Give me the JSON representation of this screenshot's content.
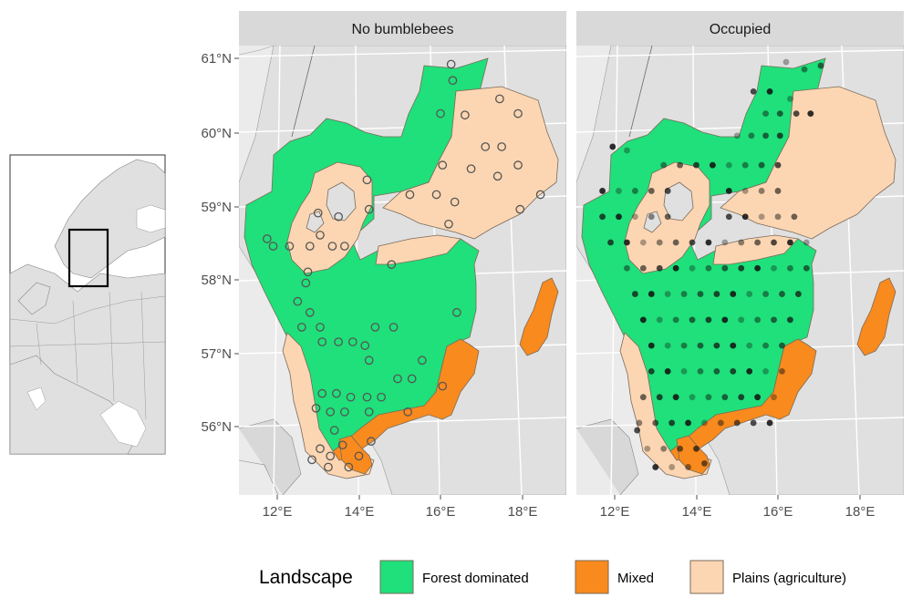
{
  "panels": [
    {
      "id": "no-bumblebees",
      "title": "No bumblebees"
    },
    {
      "id": "occupied",
      "title": "Occupied"
    }
  ],
  "axes": {
    "y_ticks": [
      "61°N",
      "60°N",
      "59°N",
      "58°N",
      "57°N",
      "56°N"
    ],
    "x_ticks": [
      "12°E",
      "14°E",
      "16°E",
      "18°E"
    ]
  },
  "legend": {
    "title": "Landscape",
    "items": [
      {
        "label": "Forest dominated",
        "color": "#1fe07a"
      },
      {
        "label": "Mixed",
        "color": "#f98a1d"
      },
      {
        "label": "Plains (agriculture)",
        "color": "#fcd6b2"
      }
    ]
  },
  "colors": {
    "panel_bg": "#ebebeb",
    "land": "#e0e0e0",
    "strip": "#d9d9d9",
    "forest": "#1fe07a",
    "mixed": "#f98a1d",
    "plains": "#fcd6b2",
    "outline": "#7a6a5a"
  },
  "sites": {
    "no_bumblebees": [
      [
        16.26,
        60.92
      ],
      [
        16.3,
        60.7
      ],
      [
        16.0,
        60.25
      ],
      [
        16.6,
        60.23
      ],
      [
        17.45,
        60.45
      ],
      [
        17.9,
        60.25
      ],
      [
        17.1,
        59.8
      ],
      [
        17.5,
        59.8
      ],
      [
        17.9,
        59.55
      ],
      [
        16.05,
        59.55
      ],
      [
        16.75,
        59.5
      ],
      [
        17.4,
        59.4
      ],
      [
        18.45,
        59.15
      ],
      [
        15.25,
        59.15
      ],
      [
        15.9,
        59.15
      ],
      [
        16.35,
        59.05
      ],
      [
        17.95,
        58.95
      ],
      [
        16.2,
        58.75
      ],
      [
        14.2,
        59.35
      ],
      [
        14.25,
        58.95
      ],
      [
        13.0,
        58.9
      ],
      [
        13.5,
        58.85
      ],
      [
        11.75,
        58.55
      ],
      [
        13.05,
        58.6
      ],
      [
        12.8,
        58.45
      ],
      [
        13.35,
        58.45
      ],
      [
        13.65,
        58.45
      ],
      [
        11.9,
        58.45
      ],
      [
        12.3,
        58.45
      ],
      [
        14.8,
        58.2
      ],
      [
        12.75,
        58.1
      ],
      [
        12.7,
        57.95
      ],
      [
        12.5,
        57.7
      ],
      [
        12.8,
        57.55
      ],
      [
        16.4,
        57.55
      ],
      [
        12.6,
        57.35
      ],
      [
        13.05,
        57.35
      ],
      [
        14.4,
        57.35
      ],
      [
        14.85,
        57.35
      ],
      [
        13.1,
        57.15
      ],
      [
        13.5,
        57.15
      ],
      [
        13.85,
        57.15
      ],
      [
        14.15,
        57.1
      ],
      [
        15.55,
        56.9
      ],
      [
        14.25,
        56.9
      ],
      [
        14.95,
        56.65
      ],
      [
        15.3,
        56.65
      ],
      [
        16.05,
        56.55
      ],
      [
        13.1,
        56.45
      ],
      [
        13.45,
        56.45
      ],
      [
        13.8,
        56.4
      ],
      [
        14.2,
        56.4
      ],
      [
        14.55,
        56.4
      ],
      [
        15.2,
        56.2
      ],
      [
        12.95,
        56.25
      ],
      [
        13.3,
        56.2
      ],
      [
        13.65,
        56.2
      ],
      [
        14.25,
        56.2
      ],
      [
        13.4,
        55.95
      ],
      [
        13.05,
        55.7
      ],
      [
        13.3,
        55.6
      ],
      [
        13.6,
        55.75
      ],
      [
        14.0,
        55.6
      ],
      [
        13.75,
        55.45
      ],
      [
        14.3,
        55.8
      ],
      [
        12.85,
        55.55
      ],
      [
        13.25,
        55.45
      ]
    ],
    "occupied": [
      [
        16.2,
        60.95
      ],
      [
        16.65,
        60.85
      ],
      [
        17.05,
        60.9
      ],
      [
        15.4,
        60.55
      ],
      [
        15.8,
        60.55
      ],
      [
        16.3,
        60.45
      ],
      [
        15.7,
        60.25
      ],
      [
        16.05,
        60.25
      ],
      [
        16.45,
        60.25
      ],
      [
        16.8,
        60.25
      ],
      [
        15.0,
        59.95
      ],
      [
        15.35,
        59.95
      ],
      [
        15.7,
        59.95
      ],
      [
        16.05,
        59.95
      ],
      [
        11.95,
        59.8
      ],
      [
        12.3,
        59.75
      ],
      [
        13.2,
        59.55
      ],
      [
        13.6,
        59.55
      ],
      [
        14.0,
        59.55
      ],
      [
        14.4,
        59.55
      ],
      [
        14.8,
        59.55
      ],
      [
        15.2,
        59.55
      ],
      [
        15.6,
        59.55
      ],
      [
        16.0,
        59.55
      ],
      [
        11.7,
        59.2
      ],
      [
        12.1,
        59.2
      ],
      [
        12.5,
        59.2
      ],
      [
        12.9,
        59.2
      ],
      [
        13.3,
        59.2
      ],
      [
        14.8,
        59.2
      ],
      [
        15.2,
        59.2
      ],
      [
        15.6,
        59.2
      ],
      [
        16.0,
        59.2
      ],
      [
        11.7,
        58.85
      ],
      [
        12.1,
        58.85
      ],
      [
        12.5,
        58.85
      ],
      [
        12.9,
        58.85
      ],
      [
        13.3,
        58.85
      ],
      [
        14.8,
        58.85
      ],
      [
        15.2,
        58.85
      ],
      [
        15.6,
        58.85
      ],
      [
        16.0,
        58.85
      ],
      [
        16.4,
        58.85
      ],
      [
        11.9,
        58.5
      ],
      [
        12.3,
        58.5
      ],
      [
        12.7,
        58.5
      ],
      [
        13.1,
        58.5
      ],
      [
        13.5,
        58.5
      ],
      [
        13.9,
        58.5
      ],
      [
        14.3,
        58.5
      ],
      [
        14.7,
        58.5
      ],
      [
        15.1,
        58.5
      ],
      [
        15.5,
        58.5
      ],
      [
        15.9,
        58.5
      ],
      [
        16.3,
        58.5
      ],
      [
        16.7,
        58.5
      ],
      [
        12.3,
        58.15
      ],
      [
        12.7,
        58.15
      ],
      [
        13.1,
        58.15
      ],
      [
        13.5,
        58.15
      ],
      [
        13.9,
        58.15
      ],
      [
        14.3,
        58.15
      ],
      [
        14.7,
        58.15
      ],
      [
        15.1,
        58.15
      ],
      [
        15.5,
        58.15
      ],
      [
        15.9,
        58.15
      ],
      [
        16.3,
        58.15
      ],
      [
        16.7,
        58.15
      ],
      [
        12.5,
        57.8
      ],
      [
        12.9,
        57.8
      ],
      [
        13.3,
        57.8
      ],
      [
        13.7,
        57.8
      ],
      [
        14.1,
        57.8
      ],
      [
        14.5,
        57.8
      ],
      [
        14.9,
        57.8
      ],
      [
        15.3,
        57.8
      ],
      [
        15.7,
        57.8
      ],
      [
        16.1,
        57.8
      ],
      [
        16.5,
        57.8
      ],
      [
        12.7,
        57.45
      ],
      [
        13.1,
        57.45
      ],
      [
        13.5,
        57.45
      ],
      [
        13.9,
        57.45
      ],
      [
        14.3,
        57.45
      ],
      [
        14.7,
        57.45
      ],
      [
        15.1,
        57.45
      ],
      [
        15.5,
        57.45
      ],
      [
        15.9,
        57.45
      ],
      [
        16.3,
        57.45
      ],
      [
        12.9,
        57.1
      ],
      [
        13.3,
        57.1
      ],
      [
        13.7,
        57.1
      ],
      [
        14.1,
        57.1
      ],
      [
        14.5,
        57.1
      ],
      [
        14.9,
        57.1
      ],
      [
        15.3,
        57.1
      ],
      [
        15.7,
        57.1
      ],
      [
        16.1,
        57.1
      ],
      [
        12.9,
        56.75
      ],
      [
        13.3,
        56.75
      ],
      [
        13.7,
        56.75
      ],
      [
        14.1,
        56.75
      ],
      [
        14.5,
        56.75
      ],
      [
        14.9,
        56.75
      ],
      [
        15.3,
        56.75
      ],
      [
        15.7,
        56.75
      ],
      [
        16.1,
        56.75
      ],
      [
        12.7,
        56.4
      ],
      [
        13.1,
        56.4
      ],
      [
        13.5,
        56.4
      ],
      [
        13.9,
        56.4
      ],
      [
        14.3,
        56.4
      ],
      [
        14.7,
        56.4
      ],
      [
        15.1,
        56.4
      ],
      [
        15.5,
        56.4
      ],
      [
        15.9,
        56.4
      ],
      [
        12.6,
        56.05
      ],
      [
        13.0,
        56.05
      ],
      [
        13.4,
        56.05
      ],
      [
        13.8,
        56.05
      ],
      [
        14.2,
        56.05
      ],
      [
        14.6,
        56.05
      ],
      [
        15.0,
        56.05
      ],
      [
        15.4,
        56.05
      ],
      [
        15.8,
        56.05
      ],
      [
        12.8,
        55.7
      ],
      [
        13.2,
        55.7
      ],
      [
        13.6,
        55.7
      ],
      [
        14.0,
        55.7
      ],
      [
        13.0,
        55.45
      ],
      [
        13.4,
        55.45
      ],
      [
        13.8,
        55.45
      ],
      [
        14.2,
        55.5
      ],
      [
        12.55,
        55.95
      ]
    ]
  }
}
